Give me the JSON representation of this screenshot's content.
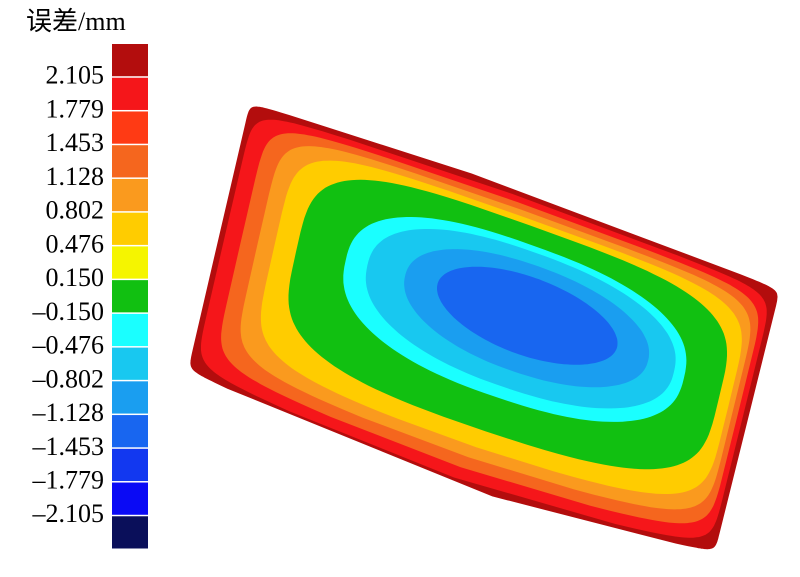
{
  "legend": {
    "title": "误差/mm",
    "labels": [
      "2.105",
      "1.779",
      "1.453",
      "1.128",
      "0.802",
      "0.476",
      "0.150",
      "–0.150",
      "–0.476",
      "–0.802",
      "–1.128",
      "–1.453",
      "–1.779",
      "–2.105"
    ],
    "colors": [
      "#b30d0d",
      "#f5161a",
      "#ff3a14",
      "#f5661e",
      "#fa9a1e",
      "#ffcc00",
      "#f5f500",
      "#11c011",
      "#1affff",
      "#18c8f0",
      "#1a9ef0",
      "#1866f0",
      "#1238f0",
      "#0a0af5",
      "#0a0f5a"
    ]
  }
}
